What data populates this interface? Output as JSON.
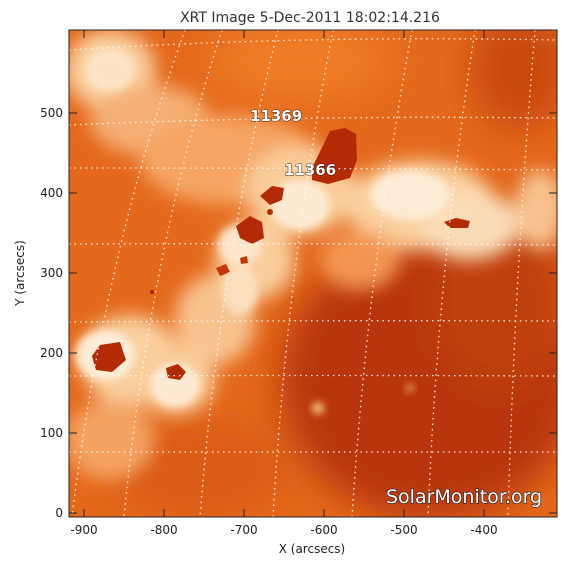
{
  "title": "XRT Image   5-Dec-2011 18:02:14.216",
  "x_axis": {
    "label": "X (arcsecs)",
    "ticks": [
      "-900",
      "-800",
      "-700",
      "-600",
      "-500",
      "-400"
    ]
  },
  "y_axis": {
    "label": "Y (arcsecs)",
    "ticks": [
      "0",
      "100",
      "200",
      "300",
      "400",
      "500"
    ]
  },
  "active_regions": [
    {
      "label": "11369"
    },
    {
      "label": "11366"
    }
  ],
  "watermark": "SolarMonitor.org",
  "colors": {
    "bright_plasma": "#ffe6c4",
    "mid_plasma": "#f2852a",
    "dark_plasma": "#bf3a08",
    "core_saturated": "#b52a06",
    "grid_lines": "#ffffff"
  }
}
